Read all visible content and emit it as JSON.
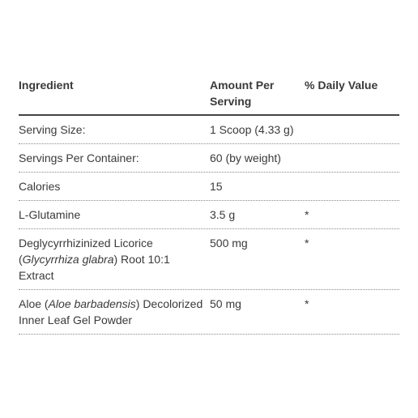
{
  "table": {
    "headers": {
      "ingredient": "Ingredient",
      "amount": "Amount Per Serving",
      "daily_value": "% Daily Value"
    },
    "rows": [
      {
        "ingredient": "Serving Size:",
        "amount": "1 Scoop (4.33 g)",
        "daily_value": ""
      },
      {
        "ingredient": "Servings Per Container:",
        "amount": "60 (by weight)",
        "daily_value": ""
      },
      {
        "ingredient": "Calories",
        "amount": "15",
        "daily_value": ""
      },
      {
        "ingredient": "L-Glutamine",
        "amount": "3.5 g",
        "daily_value": "*"
      },
      {
        "ingredient_pre": "Deglycyrrhizinized Licorice (",
        "ingredient_italic": "Glycyrrhiza glabra",
        "ingredient_post": ") Root 10:1 Extract",
        "amount": "500 mg",
        "daily_value": "*"
      },
      {
        "ingredient_pre": "Aloe (",
        "ingredient_italic": "Aloe barbadensis",
        "ingredient_post": ") Decolorized Inner Leaf Gel Powder",
        "amount": "50 mg",
        "daily_value": "*"
      }
    ]
  }
}
